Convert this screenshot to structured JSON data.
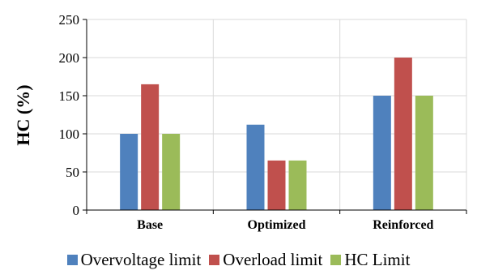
{
  "chart_data": {
    "type": "bar",
    "title": "",
    "xlabel": "",
    "ylabel": "HC (%)",
    "categories": [
      "Base",
      "Optimized",
      "Reinforced"
    ],
    "series": [
      {
        "name": "Overvoltage limit",
        "color": "#4F81BD",
        "values": [
          100,
          112,
          150
        ]
      },
      {
        "name": "Overload limit",
        "color": "#C0504D",
        "values": [
          165,
          65,
          200
        ]
      },
      {
        "name": "HC Limit",
        "color": "#9BBB59",
        "values": [
          100,
          65,
          150
        ]
      }
    ],
    "ylim": [
      0,
      250
    ],
    "yticks": [
      0,
      50,
      100,
      150,
      200,
      250
    ],
    "grid": true,
    "legend_position": "bottom"
  }
}
